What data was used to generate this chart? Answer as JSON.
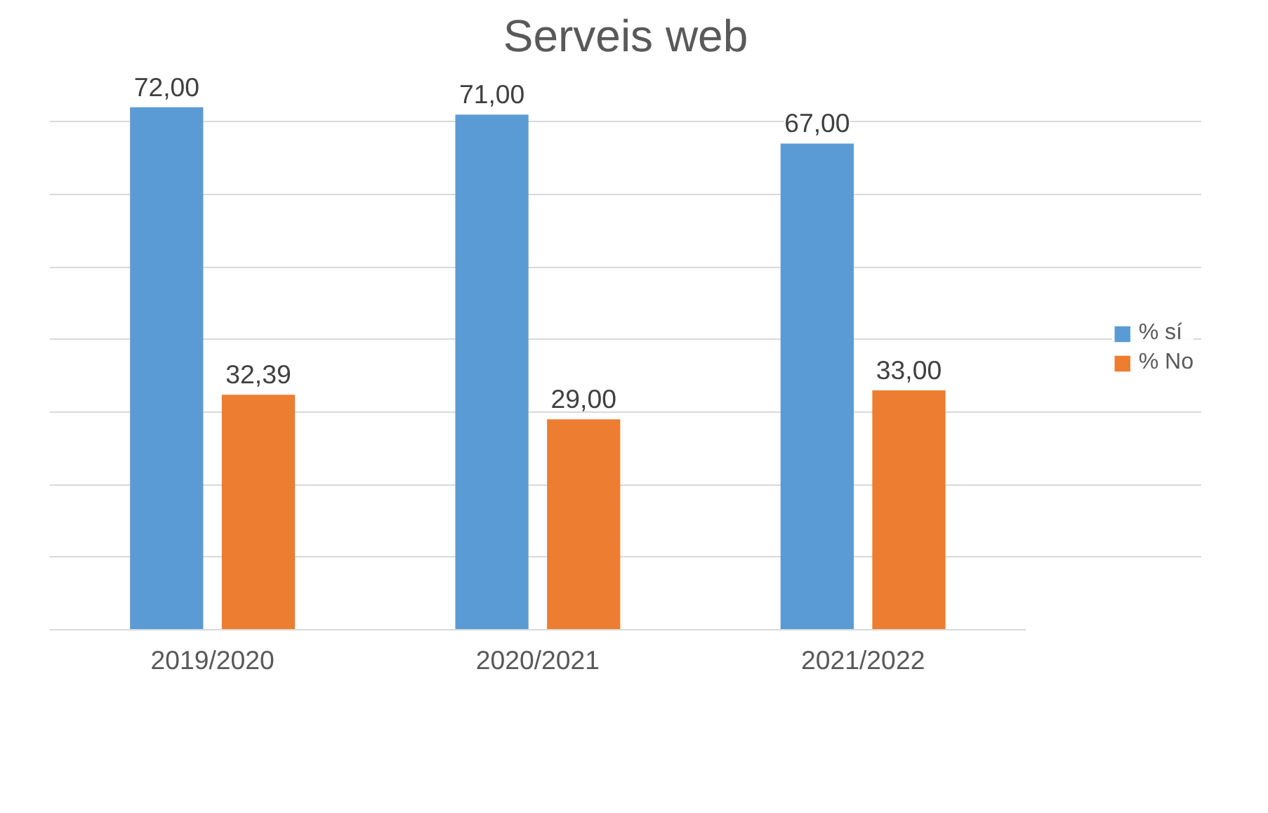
{
  "chart_data": {
    "type": "bar",
    "title": "Serveis web",
    "categories": [
      "2019/2020",
      "2020/2021",
      "2021/2022"
    ],
    "series": [
      {
        "name": "% sí",
        "color": "#5b9bd5",
        "values": [
          72,
          71,
          67
        ],
        "value_labels": [
          "72,00",
          "71,00",
          "67,00"
        ]
      },
      {
        "name": "% No",
        "color": "#ed7d31",
        "values": [
          32.39,
          29,
          33
        ],
        "value_labels": [
          "32,39",
          "29,00",
          "33,00"
        ]
      }
    ],
    "grid": "y",
    "legend": "right",
    "tick_labels": "x"
  }
}
